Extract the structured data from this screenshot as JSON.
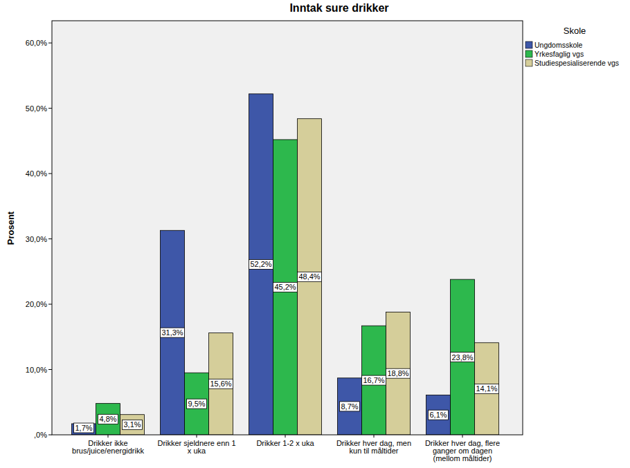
{
  "chart_data": {
    "type": "bar",
    "title": "Inntak sure drikker",
    "y_label": "Prosent",
    "legend_title": "Skole",
    "categories": [
      "Drikker ikke brus/juice/energidrikk",
      "Drikker sjeldnere enn 1 x uka",
      "Drikker 1-2 x uka",
      "Drikker hver dag, men kun til måltider",
      "Drikker hver dag, flere ganger om dagen (mellom måltider)"
    ],
    "series": [
      {
        "name": "Ungdomsskole",
        "color": "#3e57a8",
        "values": [
          1.7,
          31.3,
          52.2,
          8.7,
          6.1
        ],
        "value_labels": [
          "1,7%",
          "31,3%",
          "52,2%",
          "8,7%",
          "6,1%"
        ]
      },
      {
        "name": "Yrkesfaglig vgs",
        "color": "#2db84d",
        "values": [
          4.8,
          9.5,
          45.2,
          16.7,
          23.8
        ],
        "value_labels": [
          "4,8%",
          "9,5%",
          "45,2%",
          "16,7%",
          "23,8%"
        ]
      },
      {
        "name": "Studiespesialiserende vgs",
        "color": "#d5ce9a",
        "values": [
          3.1,
          15.6,
          48.4,
          18.8,
          14.1
        ],
        "value_labels": [
          "3,1%",
          "15,6%",
          "48,4%",
          "18,8%",
          "14,1%"
        ]
      }
    ],
    "ylim": [
      0,
      63.4
    ],
    "yticks": [
      {
        "value": 0,
        "label": ",0%"
      },
      {
        "value": 10,
        "label": "10,0%"
      },
      {
        "value": 20,
        "label": "20,0%"
      },
      {
        "value": 30,
        "label": "30,0%"
      },
      {
        "value": 40,
        "label": "40,0%"
      },
      {
        "value": 50,
        "label": "50,0%"
      },
      {
        "value": 60,
        "label": "60,0%"
      }
    ],
    "grid": false,
    "legend": "right",
    "data_labels": true
  }
}
